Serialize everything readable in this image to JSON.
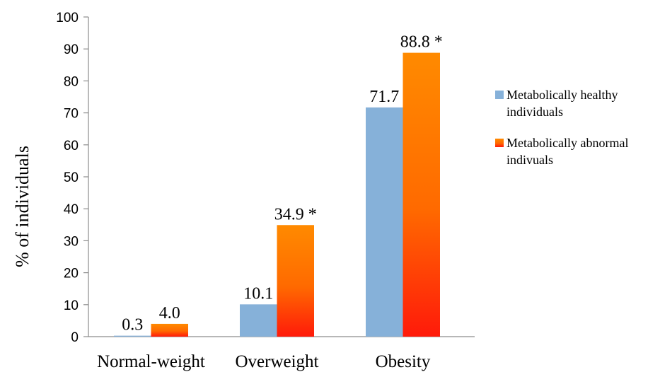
{
  "chart_data": {
    "type": "bar",
    "title": "",
    "xlabel": "",
    "ylabel": "% of individuals",
    "ylim": [
      0,
      100
    ],
    "yticks": [
      0,
      10,
      20,
      30,
      40,
      50,
      60,
      70,
      80,
      90,
      100
    ],
    "grid": false,
    "legend_position": "right",
    "categories": [
      "Normal-weight",
      "Overweight",
      "Obesity"
    ],
    "series": [
      {
        "name": "Metabolically healthy individuals",
        "legend_lines": [
          "Metabolically healthy",
          "individuals"
        ],
        "values": [
          0.3,
          10.1,
          71.7
        ],
        "labels": [
          "0.3",
          "10.1",
          "71.7"
        ],
        "color": "#86b1d9"
      },
      {
        "name": "Metabolically abnormal indivuals",
        "legend_lines": [
          "Metabolically abnormal",
          "indivuals"
        ],
        "values": [
          4.0,
          34.9,
          88.8
        ],
        "labels": [
          "4.0",
          "34.9 *",
          "88.8 *"
        ],
        "color_top": "#ff8a00",
        "color_bottom": "#ff1a0a"
      }
    ]
  }
}
